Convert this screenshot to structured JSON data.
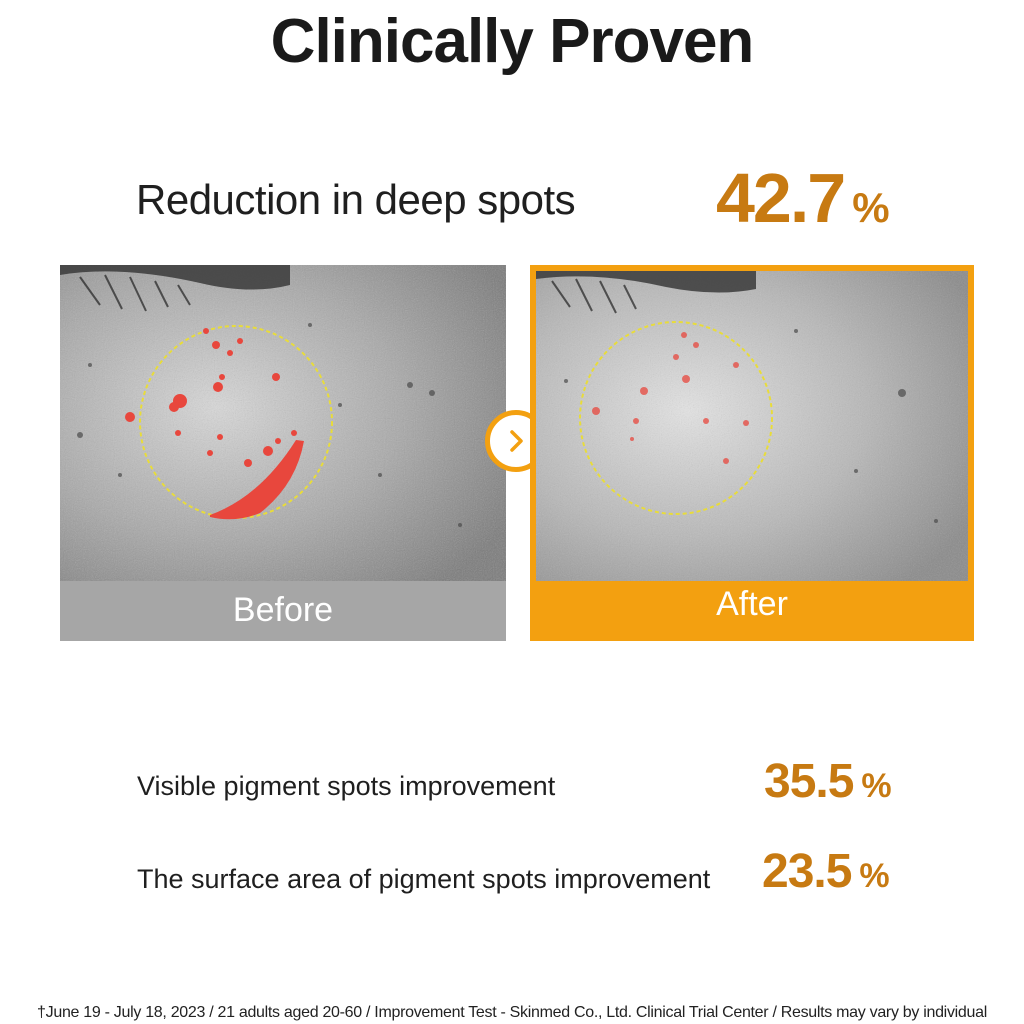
{
  "title": "Clinically Proven",
  "headline": {
    "label": "Reduction in deep spots",
    "value": "42.7",
    "unit": "%"
  },
  "comparison": {
    "before_label": "Before",
    "after_label": "After",
    "accent_color": "#f3a010",
    "before_bar_color": "#a6a6a6"
  },
  "stats": [
    {
      "label": "Visible pigment spots improvement",
      "value": "35.5",
      "unit": "%"
    },
    {
      "label": "The surface area of pigment spots improvement",
      "value": "23.5",
      "unit": "%"
    }
  ],
  "footnote": "†June 19 - July 18, 2023 / 21 adults aged 20-60 / Improvement Test - Skinmed Co., Ltd. Clinical Trial Center / Results may vary by individual",
  "icons": {
    "arrow": "chevron-right-icon"
  },
  "colors": {
    "value_text": "#c77a12",
    "spot_marker": "#e8473d",
    "circle": "#e8dc3a"
  }
}
